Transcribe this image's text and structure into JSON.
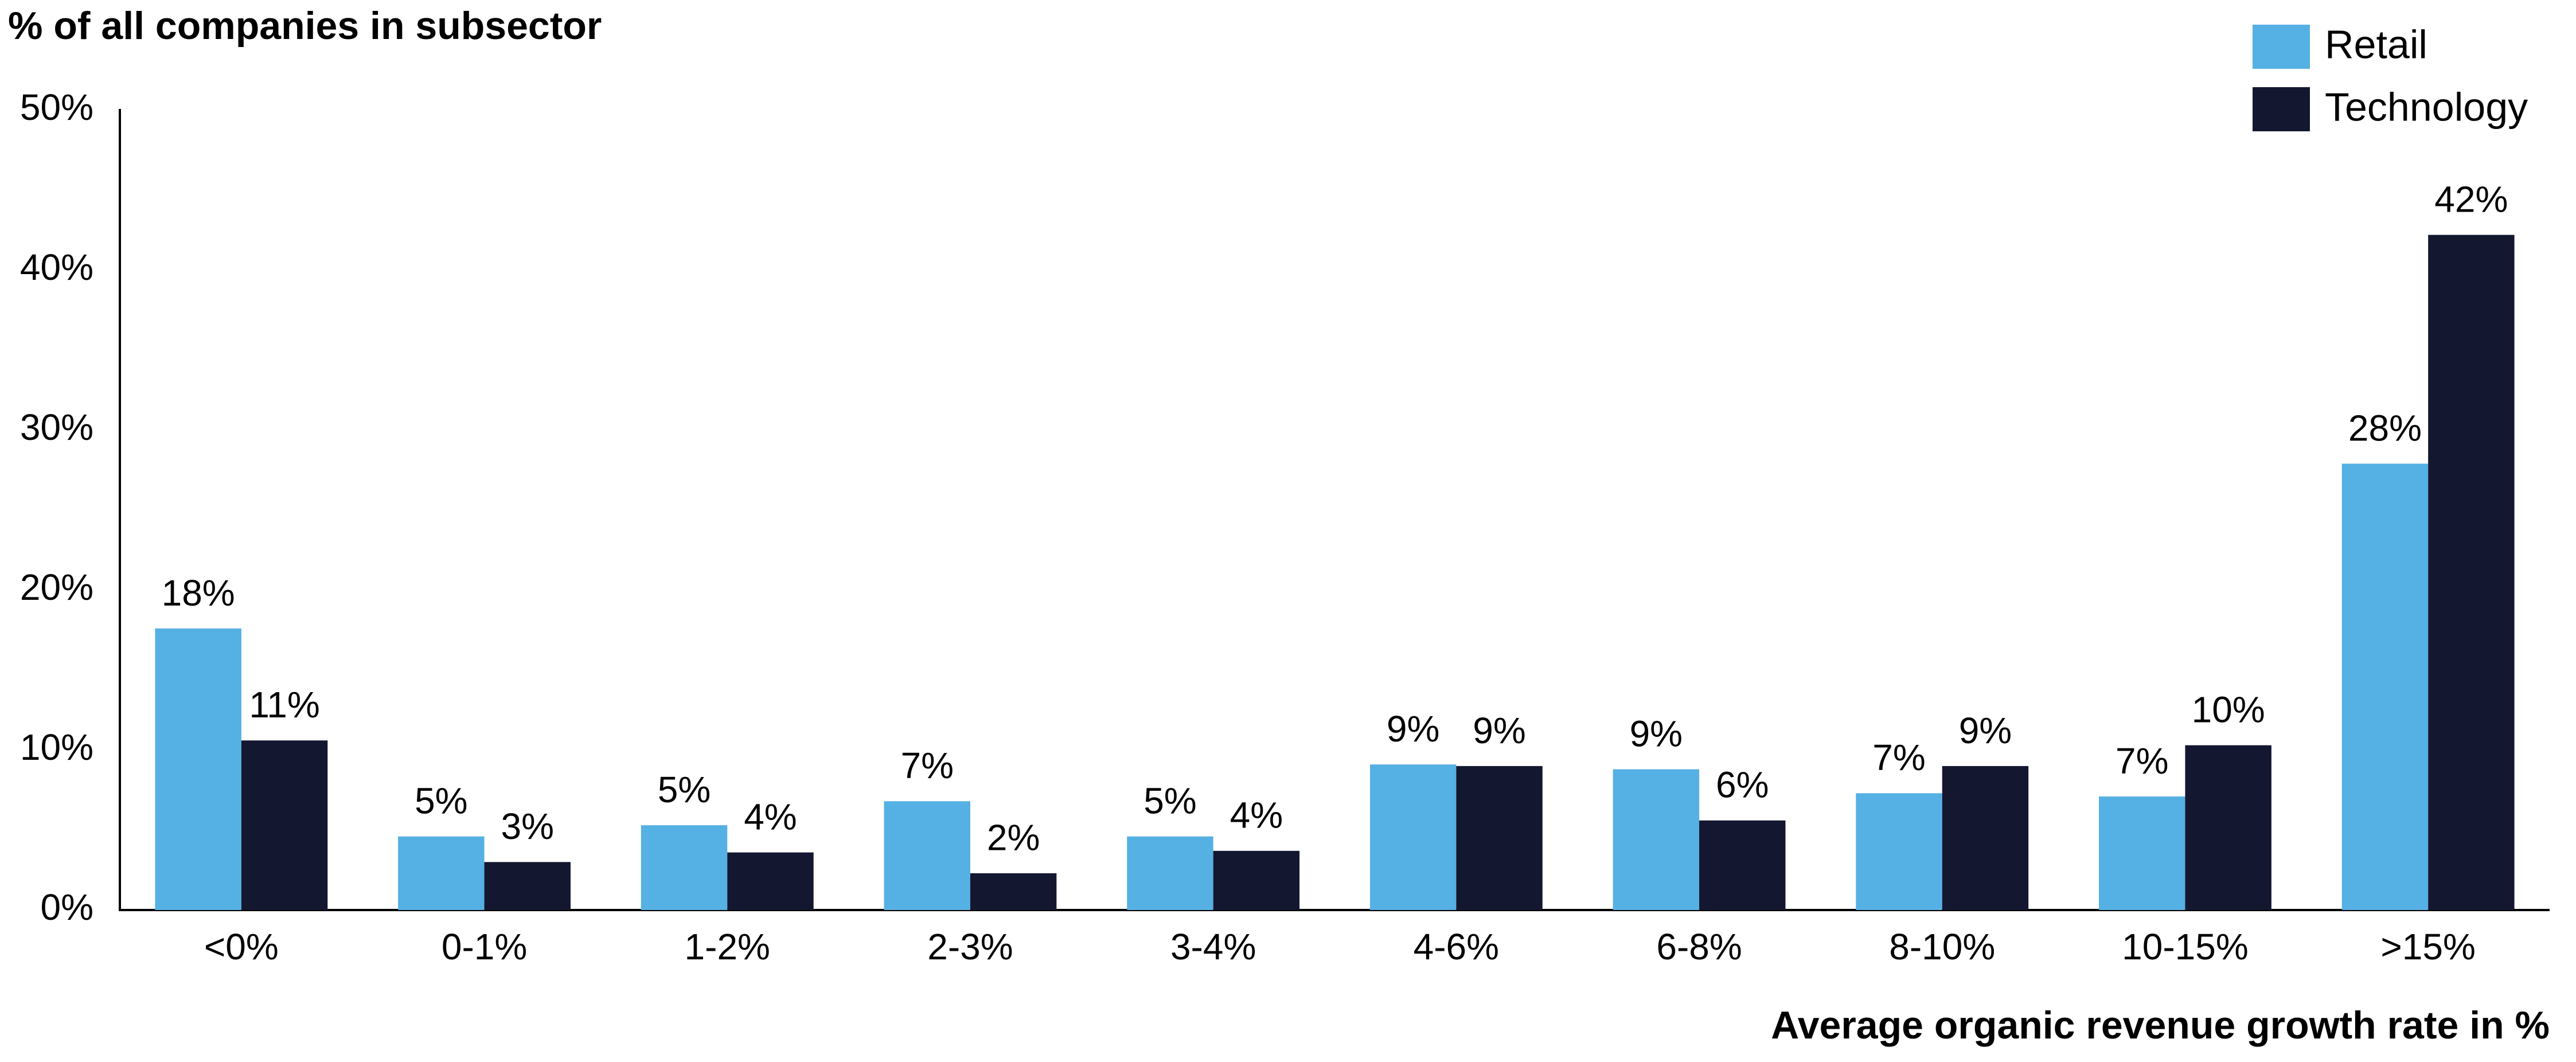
{
  "chart_data": {
    "type": "bar",
    "title": "% of all companies in subsector",
    "x_label": "Average organic revenue growth rate in %",
    "categories": [
      "<0%",
      "0-1%",
      "1-2%",
      "2-3%",
      "3-4%",
      "4-6%",
      "6-8%",
      "8-10%",
      "10-15%",
      ">15%"
    ],
    "series": [
      {
        "name": "Retail",
        "color": "#55b0e3",
        "values": [
          17.6,
          4.6,
          5.3,
          6.8,
          4.6,
          9.1,
          8.8,
          7.3,
          7.1,
          27.9
        ],
        "value_labels": [
          "18%",
          "5%",
          "5%",
          "7%",
          "5%",
          "9%",
          "9%",
          "7%",
          "7%",
          "28%"
        ]
      },
      {
        "name": "Technology",
        "color": "#131730",
        "values": [
          10.6,
          3.0,
          3.6,
          2.3,
          3.7,
          9.0,
          5.6,
          9.0,
          10.3,
          42.2
        ],
        "value_labels": [
          "11%",
          "3%",
          "4%",
          "2%",
          "4%",
          "9%",
          "6%",
          "9%",
          "10%",
          "42%"
        ]
      }
    ],
    "ylim": [
      0,
      50
    ],
    "yticks": [
      {
        "value": 0,
        "label": "0%"
      },
      {
        "value": 10,
        "label": "10%"
      },
      {
        "value": 20,
        "label": "20%"
      },
      {
        "value": 30,
        "label": "30%"
      },
      {
        "value": 40,
        "label": "40%"
      },
      {
        "value": 50,
        "label": "50%"
      }
    ],
    "grid": false,
    "legend": "upper right"
  }
}
